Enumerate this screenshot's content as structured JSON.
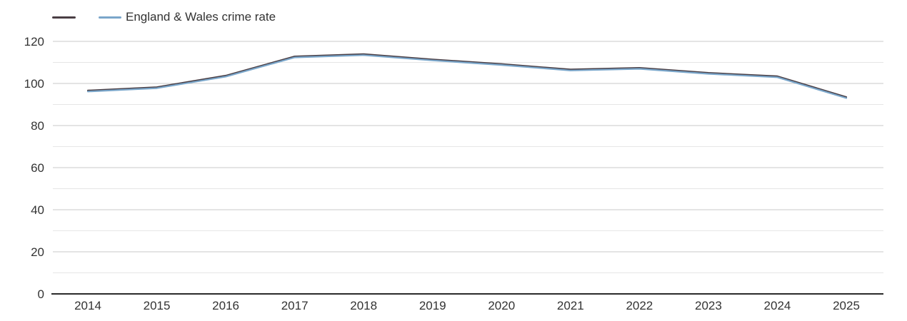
{
  "chart_data": {
    "type": "line",
    "title": "",
    "x": [
      2014,
      2015,
      2016,
      2017,
      2018,
      2019,
      2020,
      2021,
      2022,
      2023,
      2024,
      2025
    ],
    "series": [
      {
        "name": "",
        "color": "#4a3e44",
        "values": [
          96.4,
          98.0,
          103.5,
          112.6,
          113.7,
          111.2,
          109.0,
          106.4,
          107.2,
          104.8,
          103.2,
          93.3
        ]
      },
      {
        "name": "England & Wales crime rate",
        "color": "#7aa6ca",
        "values": [
          96.4,
          98.0,
          103.5,
          112.6,
          113.7,
          111.2,
          109.0,
          106.4,
          107.2,
          104.8,
          103.2,
          93.3
        ]
      }
    ],
    "ylim": [
      0,
      120
    ],
    "yticks": [
      0,
      20,
      40,
      60,
      80,
      100,
      120
    ],
    "grid_minor_step": 10,
    "legend_position": "top-left",
    "colors": {
      "axis_line": "#2b2b2b",
      "grid_major": "#c9c9c9",
      "grid_minor": "#e6e6e6",
      "tick_label": "#333333",
      "background": "#ffffff"
    }
  }
}
